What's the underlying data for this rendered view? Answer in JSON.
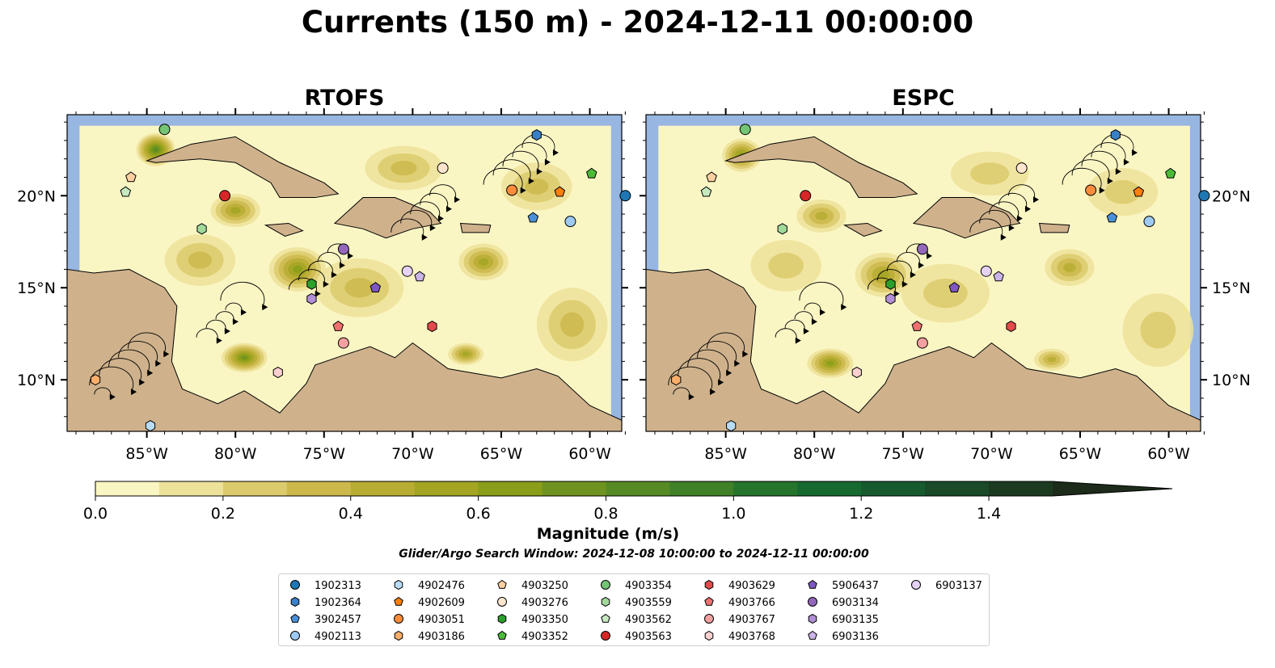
{
  "title": "Currents (150 m) - 2024-12-11 00:00:00",
  "panels": [
    {
      "title": "RTOFS"
    },
    {
      "title": "ESPC"
    }
  ],
  "chart_data": {
    "type": "heatmap",
    "title": "Currents (150 m) - 2024-12-11 00:00:00",
    "panels": [
      "RTOFS",
      "ESPC"
    ],
    "x_ticks": [
      "85°W",
      "80°W",
      "75°W",
      "70°W",
      "65°W",
      "60°W"
    ],
    "x_tick_values": [
      -85,
      -80,
      -75,
      -70,
      -65,
      -60
    ],
    "y_ticks": [
      "20°N",
      "15°N",
      "10°N"
    ],
    "y_tick_values": [
      20,
      15,
      10
    ],
    "xlim": [
      -89.5,
      -58.2
    ],
    "ylim": [
      7.2,
      24.4
    ],
    "colorbar": {
      "label": "Magnitude (m/s)",
      "ticks": [
        "0.0",
        "0.2",
        "0.4",
        "0.6",
        "0.8",
        "1.0",
        "1.2",
        "1.4"
      ],
      "tick_values": [
        0,
        0.2,
        0.4,
        0.6,
        0.8,
        1.0,
        1.2,
        1.4
      ],
      "levels": [
        0,
        0.1,
        0.2,
        0.3,
        0.4,
        0.5,
        0.6,
        0.7,
        0.8,
        0.9,
        1.0,
        1.1,
        1.2,
        1.3,
        1.4,
        1.5
      ],
      "colors": [
        "#faf6c4",
        "#ede29a",
        "#dccb6c",
        "#cdb84c",
        "#b8ad33",
        "#a3a523",
        "#8a9e19",
        "#6f9320",
        "#568a25",
        "#3f8028",
        "#25752c",
        "#166a30",
        "#165a2e",
        "#1a4a28",
        "#1c3a20"
      ],
      "extend": "max"
    },
    "floats": [
      {
        "id": "1902313",
        "marker": "circle",
        "color": "#1f77b4",
        "lon": -58.0,
        "lat": 20.0
      },
      {
        "id": "1902364",
        "marker": "hexagon",
        "color": "#3a80c8",
        "lon": -63.0,
        "lat": 23.3
      },
      {
        "id": "3902457",
        "marker": "pentagon",
        "color": "#4a90d9",
        "lon": -63.2,
        "lat": 18.8
      },
      {
        "id": "4902113",
        "marker": "circle",
        "color": "#9ec9f0",
        "lon": -61.1,
        "lat": 18.6
      },
      {
        "id": "4902476",
        "marker": "hexagon",
        "color": "#b8dcf8",
        "lon": -84.8,
        "lat": 7.5
      },
      {
        "id": "4902609",
        "marker": "pentagon",
        "color": "#ff7f0e",
        "lon": -61.7,
        "lat": 20.2
      },
      {
        "id": "4903051",
        "marker": "circle",
        "color": "#fd8d3c",
        "lon": -64.4,
        "lat": 20.3
      },
      {
        "id": "4903186",
        "marker": "hexagon",
        "color": "#fdae6b",
        "lon": -87.9,
        "lat": 10.0
      },
      {
        "id": "4903250",
        "marker": "pentagon",
        "color": "#fdd0a2",
        "lon": -85.9,
        "lat": 21.0
      },
      {
        "id": "4903276",
        "marker": "circle",
        "color": "#fee6ce",
        "lon": -68.3,
        "lat": 21.5
      },
      {
        "id": "4903350",
        "marker": "hexagon",
        "color": "#2ca02c",
        "lon": -75.7,
        "lat": 15.2
      },
      {
        "id": "4903352",
        "marker": "pentagon",
        "color": "#4dbb3a",
        "lon": -59.9,
        "lat": 21.2
      },
      {
        "id": "4903354",
        "marker": "circle",
        "color": "#74c476",
        "lon": -84.0,
        "lat": 23.6
      },
      {
        "id": "4903559",
        "marker": "hexagon",
        "color": "#a1d99b",
        "lon": -81.9,
        "lat": 18.2
      },
      {
        "id": "4903562",
        "marker": "pentagon",
        "color": "#c7e9c0",
        "lon": -86.2,
        "lat": 20.2
      },
      {
        "id": "4903563",
        "marker": "circle",
        "color": "#d62728",
        "lon": -80.6,
        "lat": 20.0
      },
      {
        "id": "4903629",
        "marker": "hexagon",
        "color": "#e34a4a",
        "lon": -68.9,
        "lat": 12.9
      },
      {
        "id": "4903766",
        "marker": "pentagon",
        "color": "#f07070",
        "lon": -74.2,
        "lat": 12.9
      },
      {
        "id": "4903767",
        "marker": "circle",
        "color": "#f4a0a0",
        "lon": -73.9,
        "lat": 12.0
      },
      {
        "id": "4903768",
        "marker": "hexagon",
        "color": "#fbd0d0",
        "lon": -77.6,
        "lat": 10.4
      },
      {
        "id": "5906437",
        "marker": "pentagon",
        "color": "#7e57c2",
        "lon": -72.1,
        "lat": 15.0
      },
      {
        "id": "6903134",
        "marker": "circle",
        "color": "#9467bd",
        "lon": -73.9,
        "lat": 17.1
      },
      {
        "id": "6903135",
        "marker": "hexagon",
        "color": "#b28fd6",
        "lon": -75.7,
        "lat": 14.4
      },
      {
        "id": "6903136",
        "marker": "pentagon",
        "color": "#cbb4e8",
        "lon": -69.6,
        "lat": 15.6
      },
      {
        "id": "6903137",
        "marker": "circle",
        "color": "#e6d2f5",
        "lon": -70.3,
        "lat": 15.9
      }
    ]
  },
  "search_window": "Glider/Argo Search Window: 2024-12-08 10:00:00 to 2024-12-11 00:00:00",
  "colors": {
    "ocean": "#97b6e1",
    "land": "#cfb28c"
  }
}
